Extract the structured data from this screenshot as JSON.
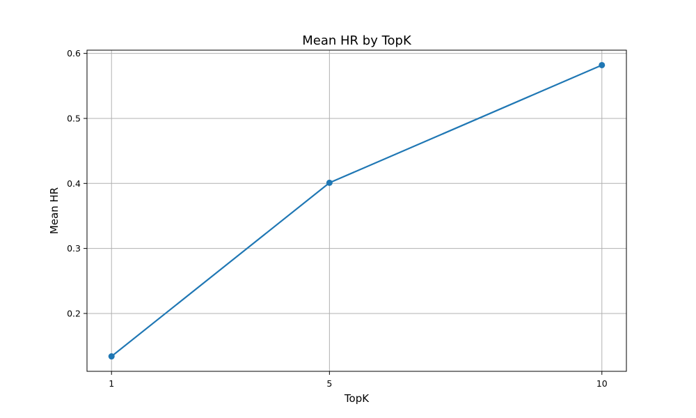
{
  "chart_data": {
    "type": "line",
    "title": "Mean HR by TopK",
    "xlabel": "TopK",
    "ylabel": "Mean HR",
    "x": [
      1,
      5,
      10
    ],
    "xlim": [
      0.55,
      10.45
    ],
    "ylim": [
      0.111,
      0.605
    ],
    "xticks": [
      1,
      5,
      10
    ],
    "yticks": [
      0.2,
      0.3,
      0.4,
      0.5,
      0.6
    ],
    "ytick_labels": [
      "0.2",
      "0.3",
      "0.4",
      "0.5",
      "0.6"
    ],
    "grid": true,
    "series": [
      {
        "values": [
          0.134,
          0.401,
          0.582
        ],
        "color": "#1f77b4"
      }
    ]
  }
}
